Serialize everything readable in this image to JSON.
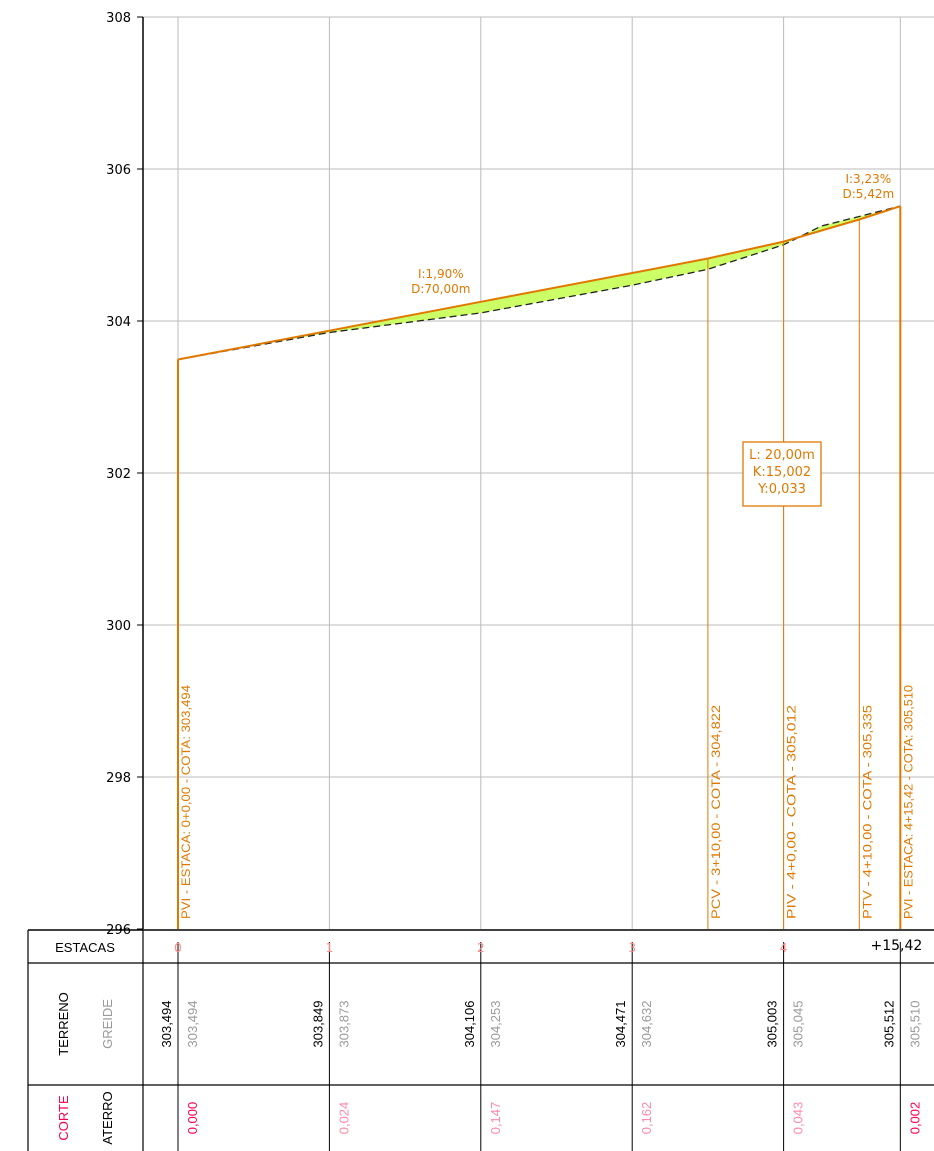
{
  "chart_data": {
    "type": "line",
    "ylim": [
      296,
      308
    ],
    "y_ticks": [
      "296",
      "298",
      "300",
      "302",
      "304",
      "306",
      "308"
    ],
    "x_range_m": [
      0,
      95.42
    ],
    "grid": true,
    "series": [
      {
        "role": "greide",
        "points": [
          [
            0,
            303.494
          ],
          [
            20,
            303.873
          ],
          [
            40,
            304.253
          ],
          [
            60,
            304.632
          ],
          [
            70,
            304.822
          ],
          [
            80,
            305.045
          ],
          [
            90,
            305.335
          ],
          [
            95.42,
            305.51
          ]
        ]
      },
      {
        "role": "terreno",
        "points": [
          [
            0,
            303.494
          ],
          [
            20,
            303.849
          ],
          [
            40,
            304.106
          ],
          [
            60,
            304.471
          ],
          [
            70,
            304.68
          ],
          [
            80,
            305.003
          ],
          [
            85,
            305.25
          ],
          [
            95.42,
            305.512
          ]
        ]
      }
    ],
    "grades": [
      {
        "slope": "I:1,90%",
        "distance": "D:70,00m",
        "at": 40
      },
      {
        "slope": "I:3,23%",
        "distance": "D:5,42m",
        "at": 95.42
      }
    ],
    "curve": {
      "l": "L: 20,00m",
      "k": "K:15,002",
      "y": "Y:0,033"
    },
    "markers": [
      {
        "x": 0,
        "label": "PVI - ESTACA: 0+0,00 - COTA: 303,494"
      },
      {
        "x": 70,
        "label": "PCV - 3+10,00  -  COTA - 304,822"
      },
      {
        "x": 80,
        "label": "PIV - 4+0,00  -  COTA - 305,012"
      },
      {
        "x": 90,
        "label": "PTV - 4+10,00  -  COTA - 305,335"
      },
      {
        "x": 95.42,
        "label": "PVI - ESTACA: 4+15,42 - COTA: 305,510"
      }
    ]
  },
  "table": {
    "row_estacas": "ESTACAS",
    "row_terreno": "TERRENO",
    "row_greide": "GREIDE",
    "row_corte": "CORTE",
    "row_aterro": "ATERRO",
    "stations": [
      {
        "x": 0,
        "estaca": "0",
        "terreno": "303,494",
        "greide": "303,494",
        "corte_aterro": "0,000",
        "emphasis": true
      },
      {
        "x": 20,
        "estaca": "1",
        "terreno": "303,849",
        "greide": "303,873",
        "corte_aterro": "0,024",
        "emphasis": false
      },
      {
        "x": 40,
        "estaca": "2",
        "terreno": "304,106",
        "greide": "304,253",
        "corte_aterro": "0,147",
        "emphasis": false
      },
      {
        "x": 60,
        "estaca": "3",
        "terreno": "304,471",
        "greide": "304,632",
        "corte_aterro": "0,162",
        "emphasis": false
      },
      {
        "x": 80,
        "estaca": "4",
        "terreno": "305,003",
        "greide": "305,045",
        "corte_aterro": "0,043",
        "emphasis": false
      },
      {
        "x": 95.42,
        "estaca": "+15,42",
        "terreno": "305,512",
        "greide": "305,510",
        "corte_aterro": "0,002",
        "emphasis": true
      }
    ]
  },
  "colors": {
    "greide": "#e07800",
    "terreno": "#222222",
    "fill": "#ccff66",
    "grid": "#bbbbbb",
    "corte": "#ff0050",
    "muted": "#9a9a9a",
    "station_pink": "#ff8888"
  }
}
